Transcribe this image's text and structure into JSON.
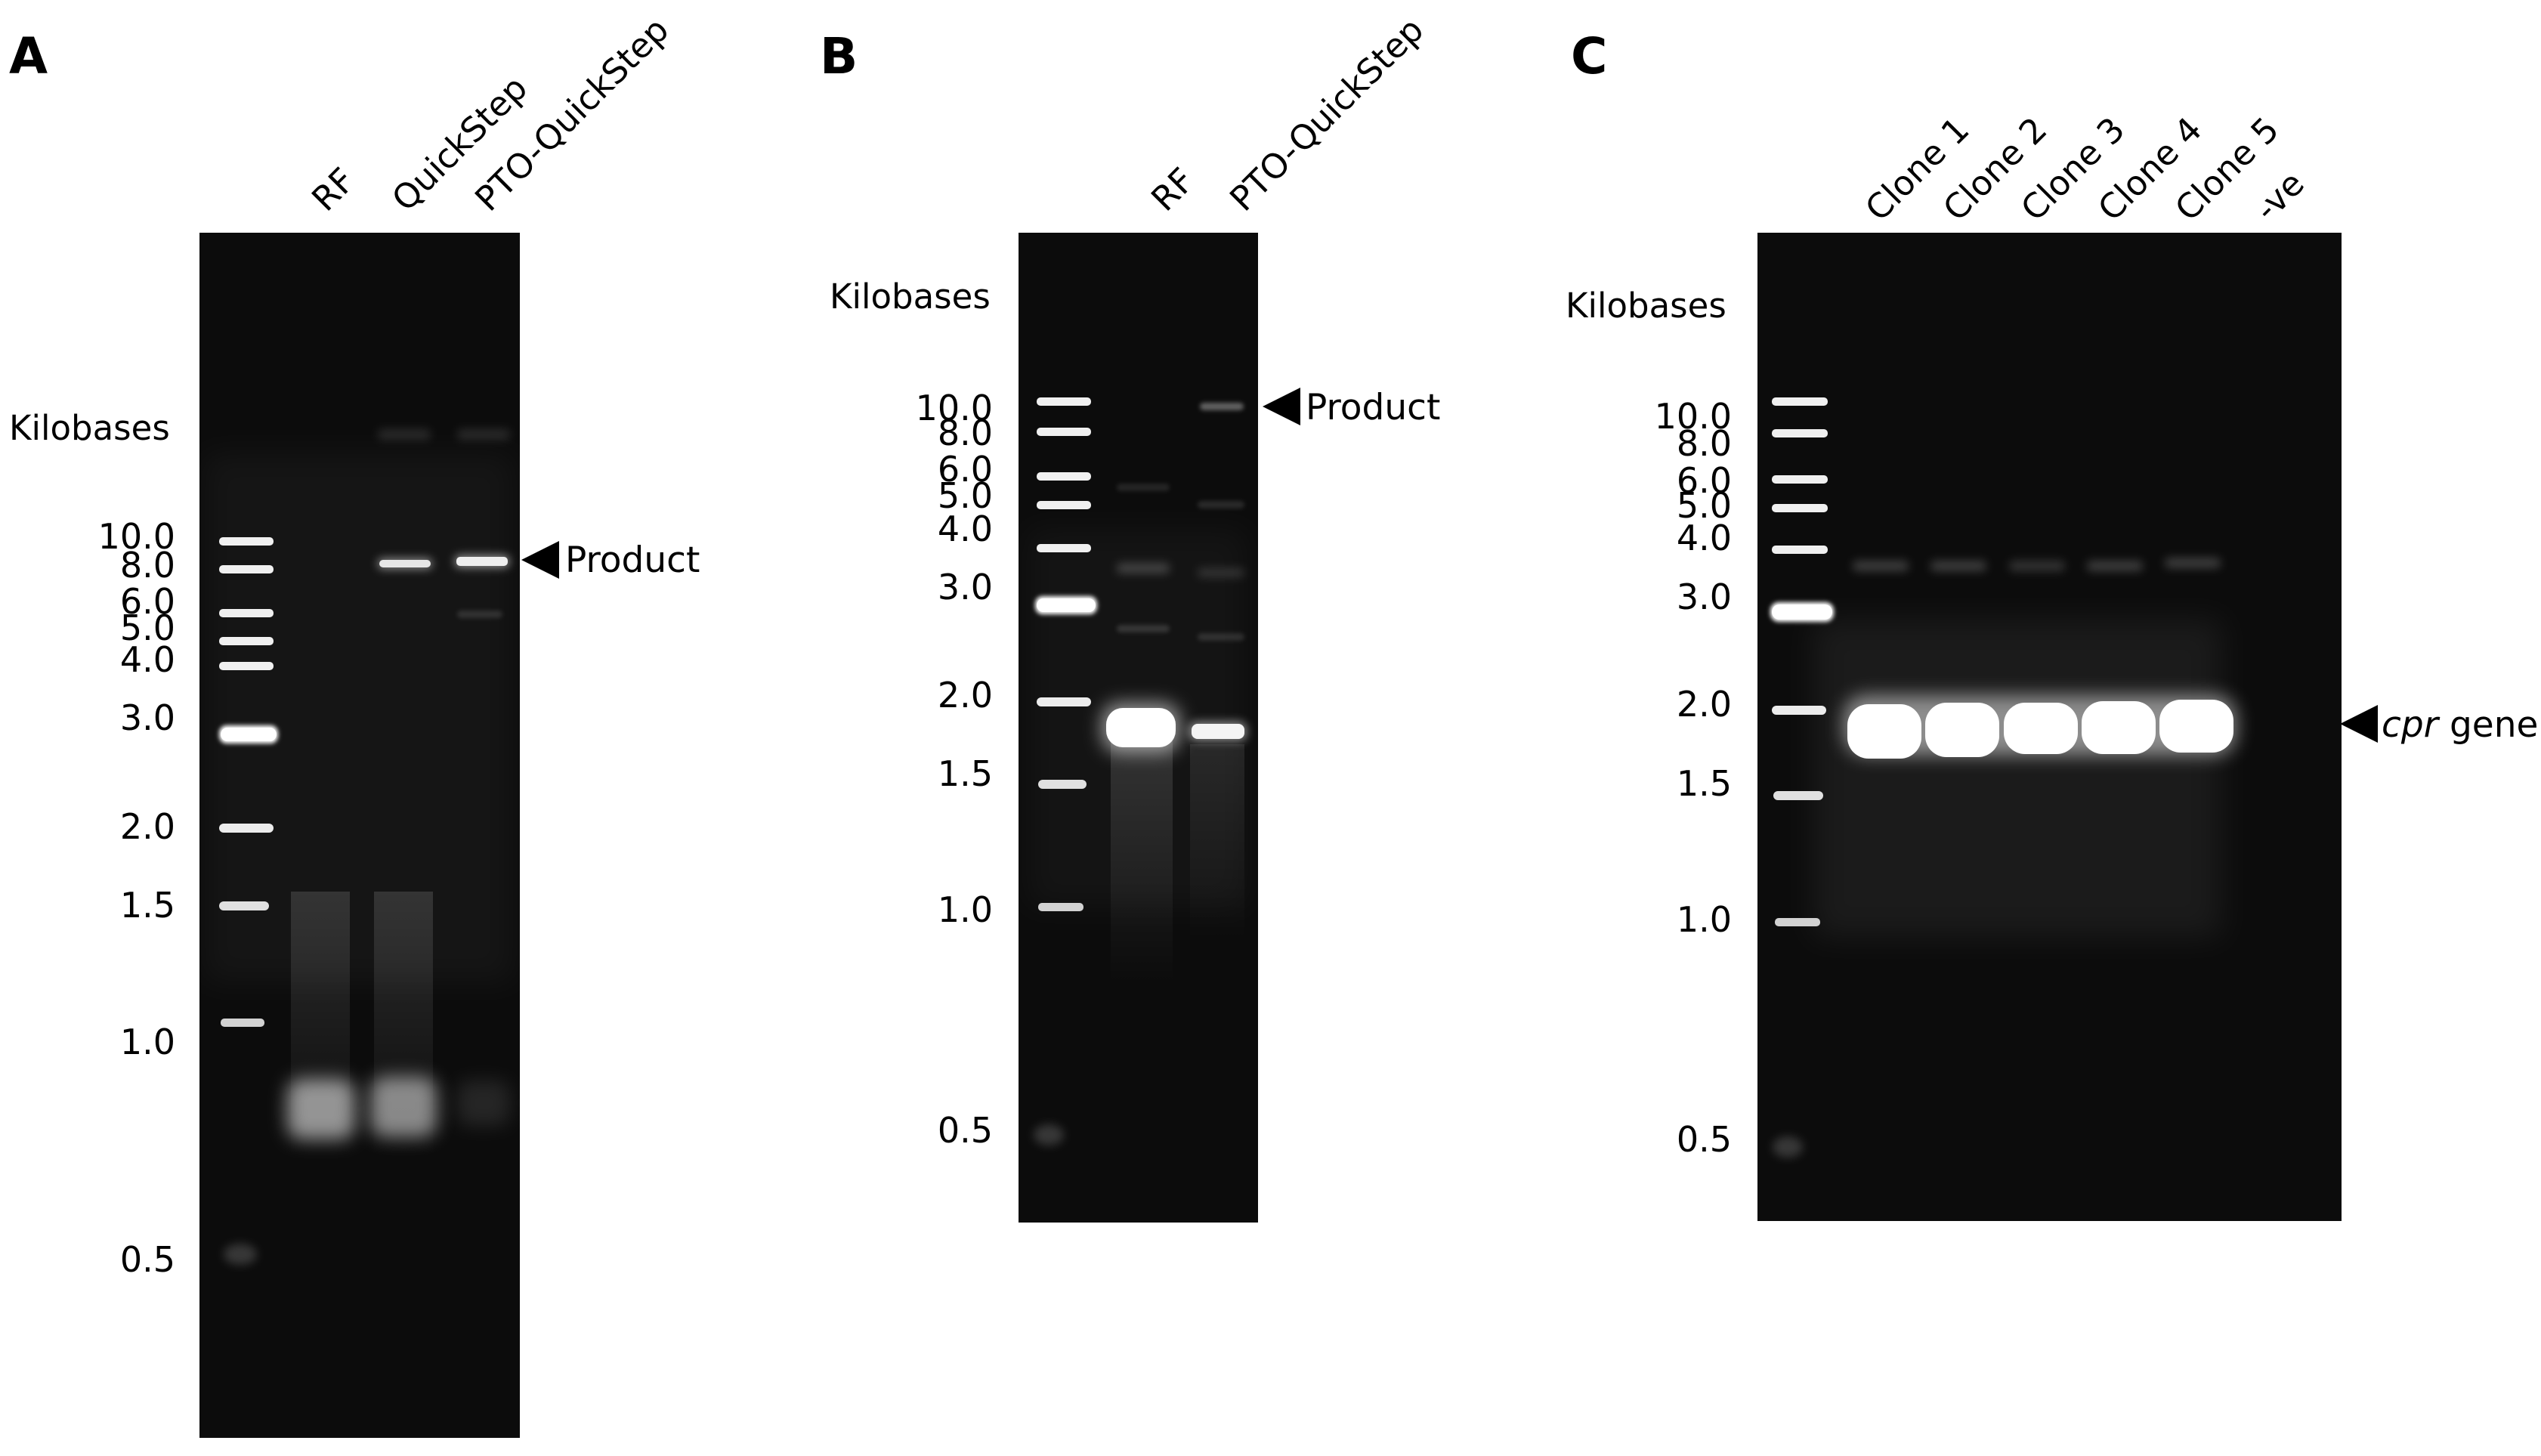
{
  "panels": [
    {
      "label": "A",
      "lanes": [
        "RF",
        "QuickStep",
        "PTO-QuickStep"
      ],
      "axis_title": "Kilobases",
      "ladder_kb": [
        "10.0",
        "8.0",
        "6.0",
        "5.0",
        "4.0",
        "3.0",
        "2.0",
        "1.5",
        "1.0",
        "0.5"
      ],
      "annotation": {
        "prefix": "",
        "italic": "",
        "text": "Product"
      }
    },
    {
      "label": "B",
      "lanes": [
        "RF",
        "PTO-QuickStep"
      ],
      "axis_title": "Kilobases",
      "ladder_kb": [
        "10.0",
        "8.0",
        "6.0",
        "5.0",
        "4.0",
        "3.0",
        "2.0",
        "1.5",
        "1.0",
        "0.5"
      ],
      "annotation": {
        "prefix": "",
        "italic": "",
        "text": "Product"
      }
    },
    {
      "label": "C",
      "lanes": [
        "Clone 1",
        "Clone 2",
        "Clone 3",
        "Clone 4",
        "Clone 5",
        "-ve"
      ],
      "axis_title": "Kilobases",
      "ladder_kb": [
        "10.0",
        "8.0",
        "6.0",
        "5.0",
        "4.0",
        "3.0",
        "2.0",
        "1.5",
        "1.0",
        "0.5"
      ],
      "annotation": {
        "prefix": "",
        "italic": "cpr",
        "text": " gene"
      }
    }
  ]
}
